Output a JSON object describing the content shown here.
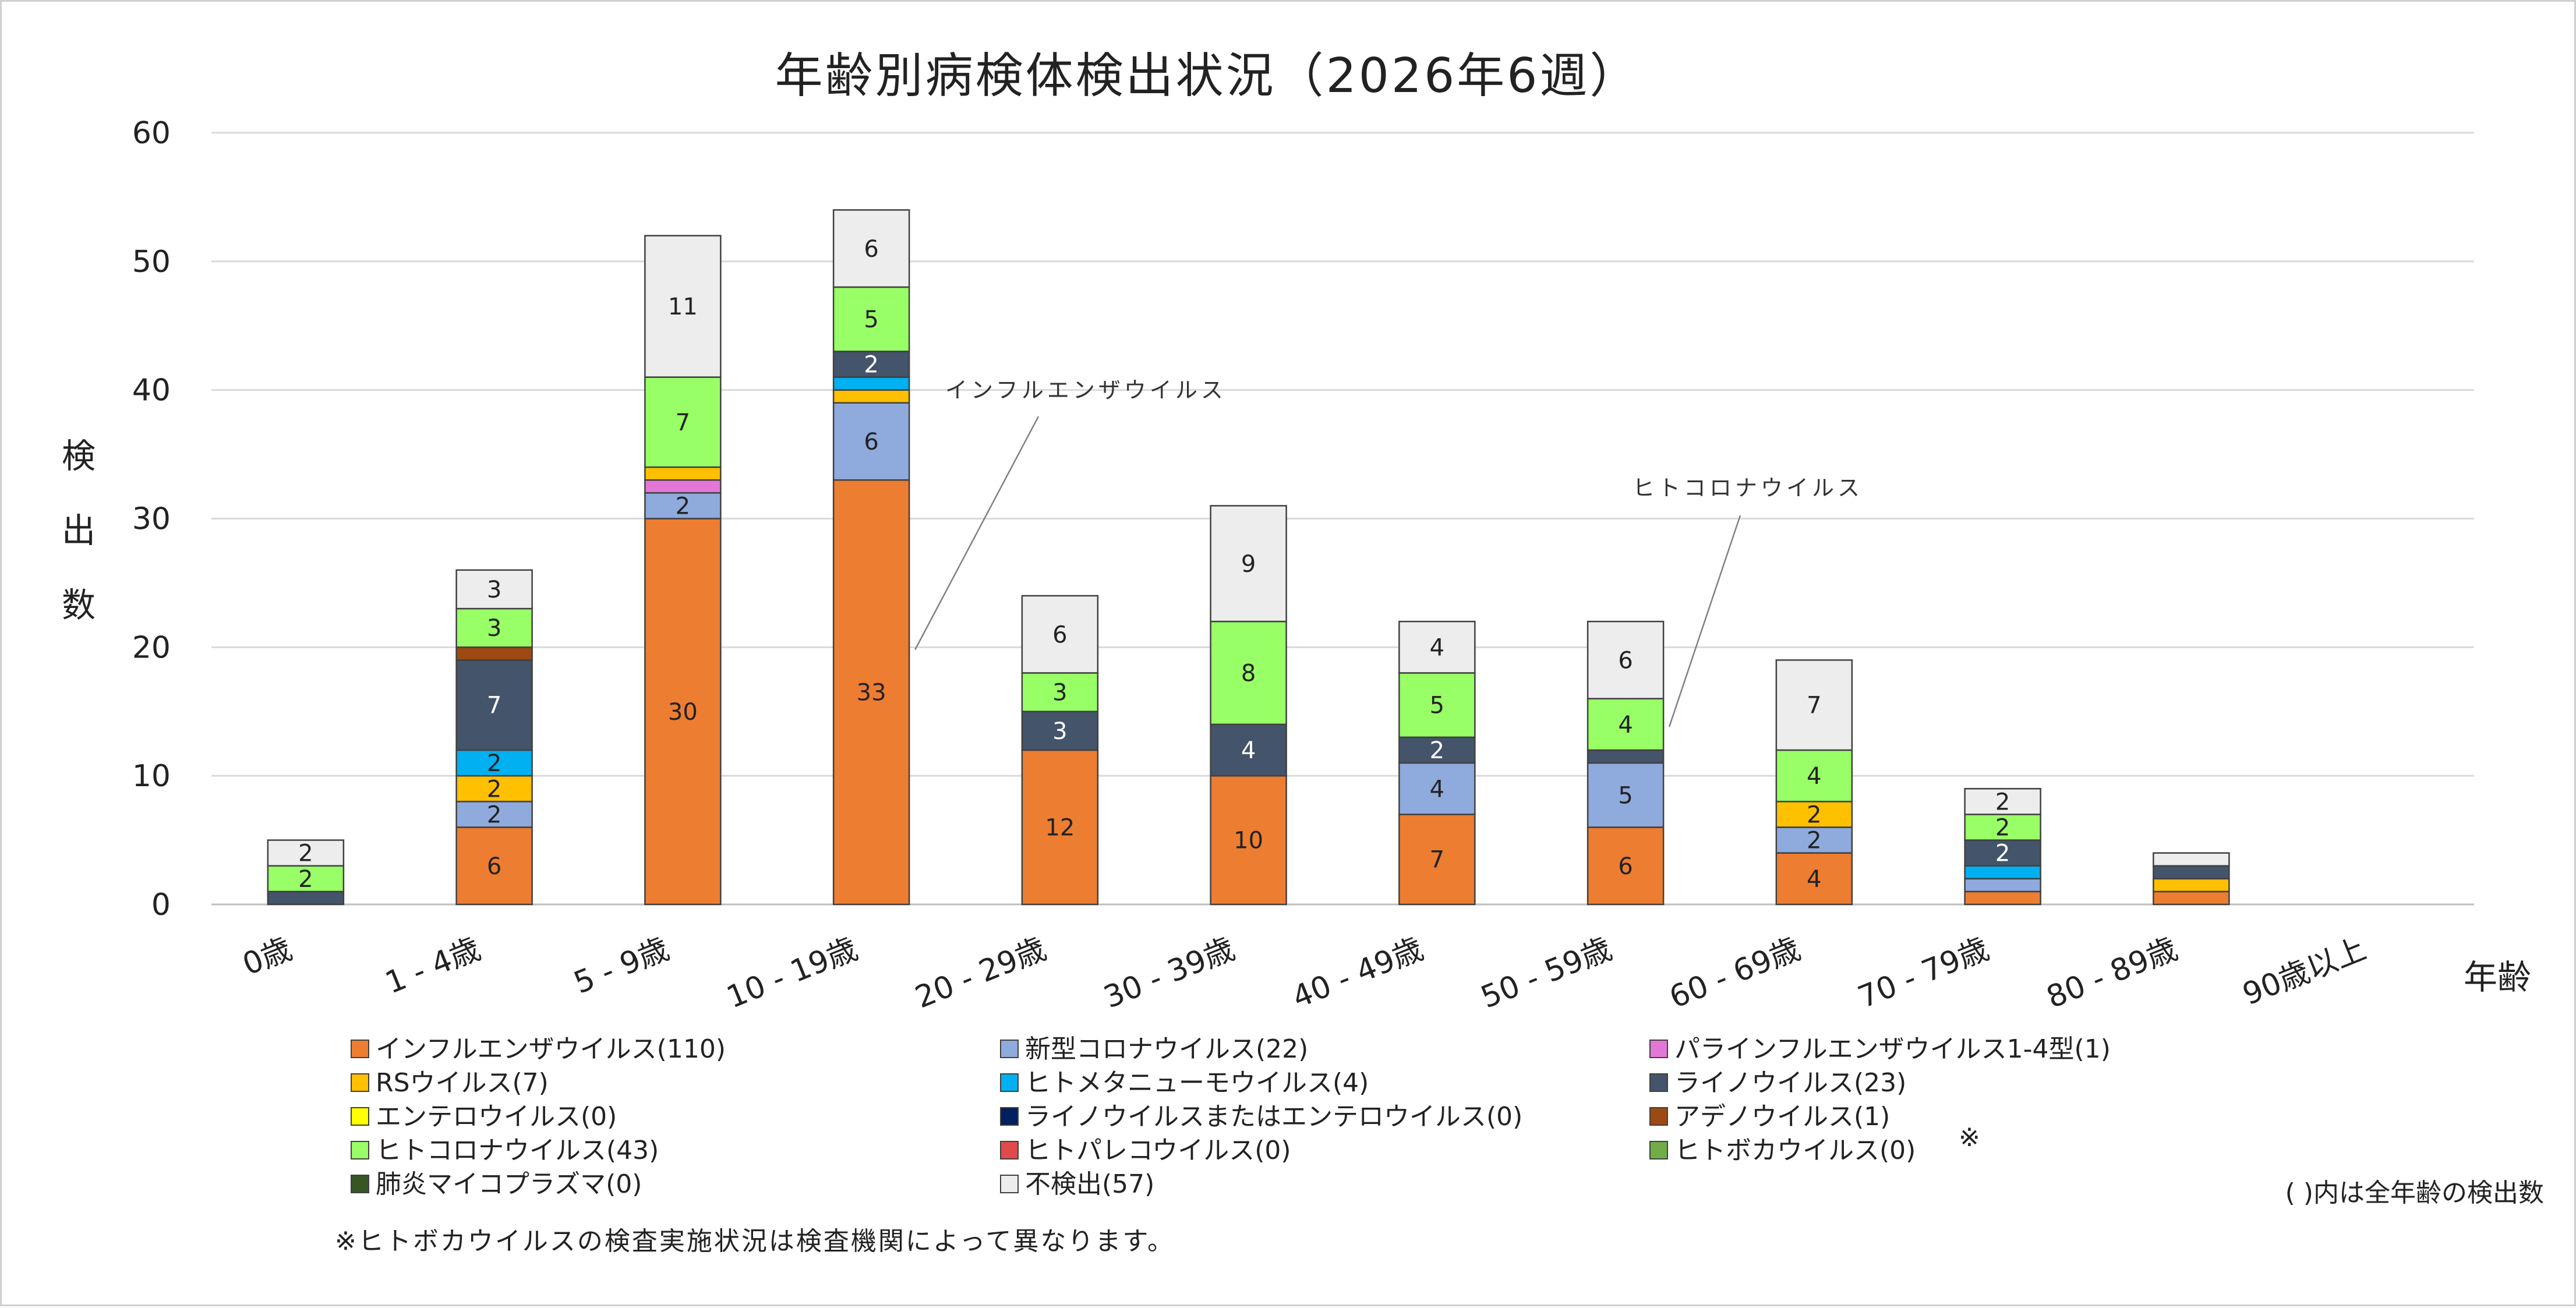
{
  "chart_data": {
    "type": "bar",
    "stacked": true,
    "title": "年齢別病検体検出状況（2026年6週）",
    "ylabel": "検出数",
    "xlabel": "年齢",
    "ylim": [
      0,
      60
    ],
    "yticks": [
      0,
      10,
      20,
      30,
      40,
      50,
      60
    ],
    "grid": true,
    "categories": [
      "0歳",
      "1 - 4歳",
      "5 - 9歳",
      "10 - 19歳",
      "20 - 29歳",
      "30 - 39歳",
      "40 - 49歳",
      "50 - 59歳",
      "60 - 69歳",
      "70 - 79歳",
      "80 - 89歳",
      "90歳以上"
    ],
    "series": [
      {
        "name": "インフルエンザウイルス",
        "count": "(110)",
        "color": "#ED7D31",
        "values": [
          0,
          6,
          30,
          33,
          12,
          10,
          7,
          6,
          4,
          1,
          1,
          0
        ]
      },
      {
        "name": "新型コロナウイルス",
        "count": "(22)",
        "color": "#8FAADC",
        "values": [
          0,
          2,
          2,
          6,
          0,
          0,
          4,
          5,
          2,
          1,
          0,
          0
        ]
      },
      {
        "name": "パラインフルエンザウイルス1-4型",
        "count": "(1)",
        "color": "#E377D8",
        "values": [
          0,
          0,
          1,
          0,
          0,
          0,
          0,
          0,
          0,
          0,
          0,
          0
        ]
      },
      {
        "name": "RSウイルス",
        "count": "(7)",
        "color": "#FFC000",
        "values": [
          0,
          2,
          1,
          1,
          0,
          0,
          0,
          0,
          2,
          0,
          1,
          0
        ]
      },
      {
        "name": "ヒトメタニューモウイルス",
        "count": "(4)",
        "color": "#00B0F0",
        "values": [
          0,
          2,
          0,
          1,
          0,
          0,
          0,
          0,
          0,
          1,
          0,
          0
        ]
      },
      {
        "name": "ライノウイルス",
        "count": "(23)",
        "color": "#44546A",
        "values": [
          1,
          7,
          0,
          2,
          3,
          4,
          2,
          1,
          0,
          2,
          1,
          0
        ]
      },
      {
        "name": "エンテロウイルス",
        "count": "(0)",
        "color": "#FFFF00",
        "values": [
          0,
          0,
          0,
          0,
          0,
          0,
          0,
          0,
          0,
          0,
          0,
          0
        ]
      },
      {
        "name": "ライノウイルスまたはエンテロウイルス",
        "count": "(0)",
        "color": "#002060",
        "values": [
          0,
          0,
          0,
          0,
          0,
          0,
          0,
          0,
          0,
          0,
          0,
          0
        ]
      },
      {
        "name": "アデノウイルス",
        "count": "(1)",
        "color": "#9C4A12",
        "values": [
          0,
          1,
          0,
          0,
          0,
          0,
          0,
          0,
          0,
          0,
          0,
          0
        ]
      },
      {
        "name": "ヒトコロナウイルス",
        "count": "(43)",
        "color": "#99FF66",
        "values": [
          2,
          3,
          7,
          5,
          3,
          8,
          5,
          4,
          4,
          2,
          0,
          0
        ]
      },
      {
        "name": "ヒトパレコウイルス",
        "count": "(0)",
        "color": "#E04A4A",
        "values": [
          0,
          0,
          0,
          0,
          0,
          0,
          0,
          0,
          0,
          0,
          0,
          0
        ]
      },
      {
        "name": "ヒトボカウイルス",
        "count": "(0)",
        "color": "#70AD47",
        "values": [
          0,
          0,
          0,
          0,
          0,
          0,
          0,
          0,
          0,
          0,
          0,
          0
        ]
      },
      {
        "name": "肺炎マイコプラズマ",
        "count": "(0)",
        "color": "#375623",
        "values": [
          0,
          0,
          0,
          0,
          0,
          0,
          0,
          0,
          0,
          0,
          0,
          0
        ]
      },
      {
        "name": "不検出",
        "count": "(57)",
        "color": "#EDEDED",
        "values": [
          2,
          3,
          11,
          6,
          6,
          9,
          4,
          6,
          7,
          2,
          1,
          0
        ]
      }
    ],
    "segment_labels_shown_for_values_ge": 2,
    "annotations": [
      {
        "text": "インフルエンザウイルス",
        "category": "10 - 19歳",
        "series": "インフルエンザウイルス"
      },
      {
        "text": "ヒトコロナウイルス",
        "category": "50 - 59歳",
        "series": "ヒトコロナウイルス"
      }
    ],
    "legend_asterisk_mark": "※",
    "legend_note": "( )内は全年齢の検出数",
    "footnote": "※ヒトボカウイルスの検査実施状況は検査機関によって異なります。"
  }
}
